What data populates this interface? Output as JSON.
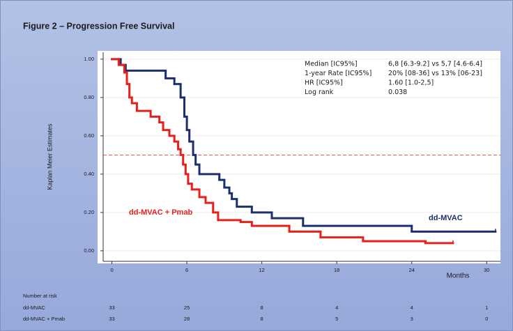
{
  "chart_data": {
    "type": "line",
    "title": "Figure 2 – Progression Free Survival",
    "ylabel": "Kaplan Meier Estimates",
    "xlabel": "Months",
    "xlim": [
      -0.7,
      31.1
    ],
    "ylim": [
      -0.055,
      1.036
    ],
    "xticks": [
      0,
      6,
      12,
      18,
      24,
      30
    ],
    "yticks": [
      {
        "value": 1,
        "label": "1.00"
      },
      {
        "value": 0.8,
        "label": "0.80"
      },
      {
        "value": 0.6,
        "label": "0.60"
      },
      {
        "value": 0.4,
        "label": "0.40"
      },
      {
        "value": 0.2,
        "label": "0.20"
      },
      {
        "value": 0,
        "label": "0.00"
      }
    ],
    "grid": true,
    "hline": 0.5,
    "series": [
      {
        "name": "dd-MVAC",
        "color": "#1c2f6e",
        "x": [
          0,
          0.7,
          1.1,
          4.3,
          5.0,
          5.5,
          5.8,
          6.0,
          6.2,
          6.5,
          6.7,
          7.0,
          8.6,
          9.0,
          9.4,
          9.6,
          10.0,
          11.2,
          12.8,
          15.3,
          24.0,
          30.7
        ],
        "values": [
          1.0,
          0.97,
          0.94,
          0.9,
          0.87,
          0.8,
          0.7,
          0.63,
          0.57,
          0.5,
          0.45,
          0.4,
          0.37,
          0.33,
          0.3,
          0.27,
          0.23,
          0.2,
          0.17,
          0.13,
          0.1,
          0.1
        ]
      },
      {
        "name": "dd-MVAC + Pmab",
        "color": "#e8201c",
        "x": [
          0,
          0.55,
          1.0,
          1.2,
          1.4,
          1.6,
          2.0,
          3.1,
          3.8,
          4.1,
          4.6,
          5.0,
          5.3,
          5.5,
          5.7,
          5.9,
          6.1,
          6.4,
          7.0,
          7.5,
          8.1,
          8.5,
          10.3,
          11.2,
          14.2,
          16.7,
          20.1,
          25.1,
          27.3
        ],
        "values": [
          1.0,
          0.97,
          0.93,
          0.87,
          0.8,
          0.77,
          0.73,
          0.7,
          0.67,
          0.63,
          0.6,
          0.57,
          0.53,
          0.5,
          0.45,
          0.4,
          0.35,
          0.32,
          0.28,
          0.25,
          0.2,
          0.16,
          0.15,
          0.13,
          0.1,
          0.07,
          0.05,
          0.04,
          0.04
        ]
      }
    ],
    "stats": [
      [
        "Median [IC95%]",
        "6,8 [6.3-9.2] vs 5,7 [4.6-6.4]"
      ],
      [
        "1-year Rate [IC95%]",
        "20% [08-36]  vs  13% [06-23]"
      ],
      [
        "HR [IC95%]",
        "1.60 [1.0-2,5]"
      ],
      [
        "Log rank",
        "0.038"
      ]
    ],
    "risk_table": {
      "title": "Number at risk",
      "rows": [
        {
          "label": "dd-MVAC",
          "counts": [
            33,
            25,
            8,
            4,
            4,
            1
          ]
        },
        {
          "label": "dd-MVAC + Pmab",
          "counts": [
            33,
            28,
            8,
            5,
            3,
            0
          ]
        }
      ]
    }
  }
}
